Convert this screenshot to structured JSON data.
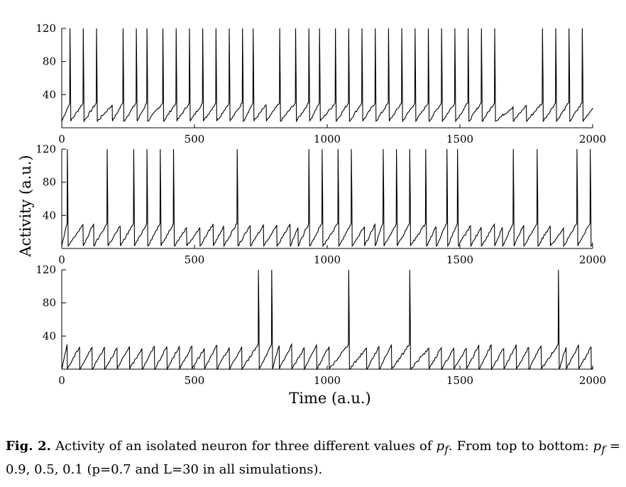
{
  "figure": {
    "ylabel": "Activity (a.u.)",
    "xlabel": "Time (a.u.)"
  },
  "caption": {
    "label": "Fig. 2.",
    "text_1": "Activity of an isolated neuron for three different values of ",
    "symbol": "p",
    "symbol_sub": "f",
    "text_2": ". From top to bottom: ",
    "text_3": " = 0.9,  0.5,  0.1 (p=0.7 and L=30 in all simulations)."
  },
  "chart_data": [
    {
      "type": "line",
      "panel": "top",
      "xlim": [
        0,
        2000
      ],
      "ylim": [
        0,
        120
      ],
      "xticks": [
        0,
        500,
        1000,
        1500,
        2000
      ],
      "xtick_labels": [
        "0",
        "500",
        "1000",
        "1500",
        "2000"
      ],
      "yticks": [
        40,
        80,
        120
      ],
      "ytick_labels": [
        "40",
        "80",
        "120"
      ],
      "baseline": 8,
      "threshold": 30,
      "spike_peak": 120,
      "spike_times": [
        30,
        80,
        130,
        230,
        280,
        320,
        380,
        430,
        480,
        530,
        580,
        630,
        680,
        720,
        820,
        880,
        930,
        970,
        1030,
        1080,
        1130,
        1180,
        1230,
        1280,
        1330,
        1380,
        1430,
        1480,
        1530,
        1580,
        1630,
        1810,
        1860,
        1910,
        1960
      ],
      "subthreshold_reset_times": [
        190,
        770,
        1700,
        1750
      ]
    },
    {
      "type": "line",
      "panel": "middle",
      "xlim": [
        0,
        2000
      ],
      "ylim": [
        0,
        120
      ],
      "xticks": [
        0,
        500,
        1000,
        1500,
        2000
      ],
      "xtick_labels": [
        "0",
        "500",
        "1000",
        "1500",
        "2000"
      ],
      "yticks": [
        40,
        80,
        120
      ],
      "ytick_labels": [
        "40",
        "80",
        "120"
      ],
      "baseline": 3,
      "threshold": 30,
      "spike_peak": 120,
      "spike_times": [
        20,
        170,
        270,
        320,
        370,
        420,
        660,
        930,
        980,
        1040,
        1090,
        1210,
        1260,
        1310,
        1370,
        1450,
        1490,
        1700,
        1790,
        1940,
        1990
      ],
      "subthreshold_reset_times": [
        80,
        120,
        220,
        470,
        520,
        570,
        610,
        710,
        760,
        810,
        860,
        890,
        1140,
        1180,
        1410,
        1540,
        1580,
        1630,
        1660,
        1740,
        1840,
        1890
      ]
    },
    {
      "type": "line",
      "panel": "bottom",
      "xlim": [
        0,
        2000
      ],
      "ylim": [
        0,
        120
      ],
      "xticks": [
        0,
        500,
        1000,
        1500,
        2000
      ],
      "xtick_labels": [
        "0",
        "500",
        "1000",
        "1500",
        "2000"
      ],
      "yticks": [
        40,
        80,
        120
      ],
      "ytick_labels": [
        "40",
        "80",
        "120"
      ],
      "baseline": 0,
      "threshold": 30,
      "spike_peak": 120,
      "spike_times": [
        740,
        790,
        1080,
        1310,
        1870
      ],
      "reset_period": 47
    }
  ]
}
